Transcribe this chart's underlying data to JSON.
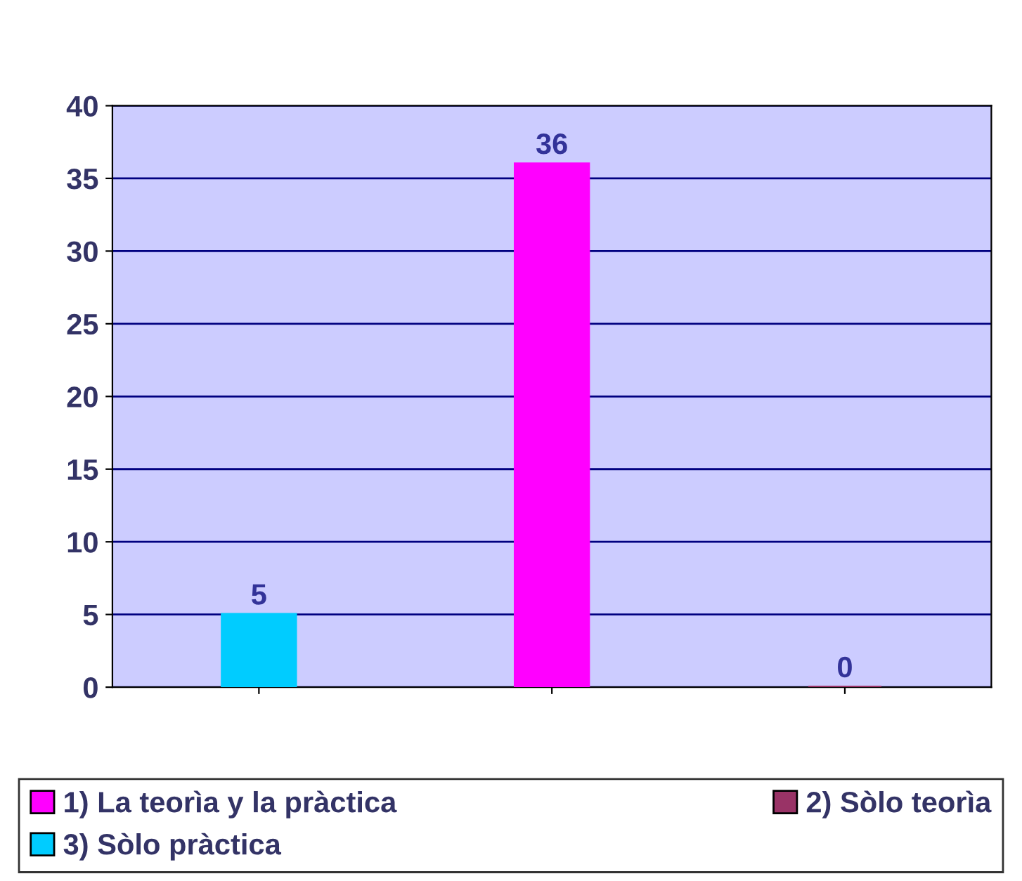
{
  "chart_data": {
    "type": "bar",
    "categories": [
      null,
      null,
      null
    ],
    "series": [
      {
        "name": "1) La teorìa y la pràctica",
        "color": "#ff00ff",
        "values": [
          null,
          36,
          null
        ]
      },
      {
        "name": "2) Sòlo teorìa",
        "color": "#993366",
        "values": [
          null,
          null,
          0
        ]
      },
      {
        "name": "3) Sòlo pràctica",
        "color": "#00ccff",
        "values": [
          5,
          null,
          null
        ]
      }
    ],
    "ylim": [
      0,
      40
    ],
    "yticks": [
      0,
      5,
      10,
      15,
      20,
      25,
      30,
      35,
      40
    ],
    "grid": "y",
    "legend": "bottom",
    "data_labels": true
  }
}
